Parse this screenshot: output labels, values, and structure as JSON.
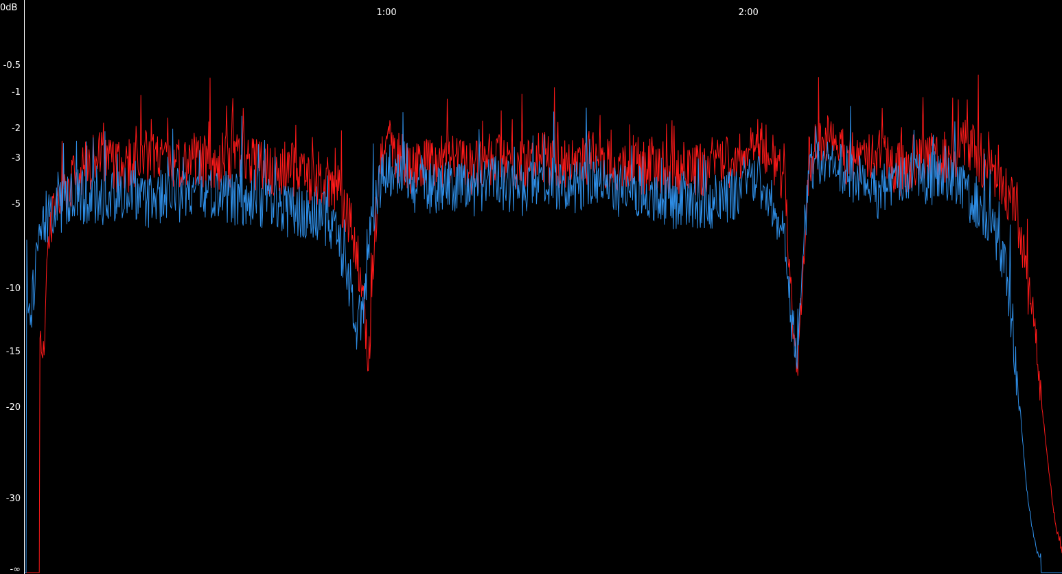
{
  "chart_data": {
    "type": "line",
    "title": "",
    "xlabel": "",
    "ylabel": "",
    "y_unit_label": "0dB",
    "x_tick_labels": [
      {
        "t": 60,
        "label": "1:00"
      },
      {
        "t": 120,
        "label": "2:00"
      }
    ],
    "y_tick_labels": [
      {
        "db": -0.5,
        "label": "-0.5"
      },
      {
        "db": -1,
        "label": "-1"
      },
      {
        "db": -2,
        "label": "-2"
      },
      {
        "db": -3,
        "label": "-3"
      },
      {
        "db": -5,
        "label": "-5"
      },
      {
        "db": -10,
        "label": "-10"
      },
      {
        "db": -15,
        "label": "-15"
      },
      {
        "db": -20,
        "label": "-20"
      },
      {
        "db": -30,
        "label": "-30"
      },
      {
        "db": -999,
        "label": "-∞"
      }
    ],
    "xlim": [
      0,
      172
    ],
    "series": [
      {
        "color": "#ff1a1a",
        "x": [
          0,
          2,
          3,
          4,
          5,
          8,
          12,
          16,
          20,
          24,
          28,
          32,
          36,
          40,
          44,
          48,
          50,
          52,
          54,
          56,
          57,
          58,
          59,
          60,
          62,
          64,
          66,
          68,
          70,
          74,
          78,
          82,
          86,
          90,
          94,
          98,
          102,
          106,
          110,
          114,
          118,
          122,
          124,
          126,
          127,
          128,
          129,
          130,
          132,
          134,
          136,
          138,
          140,
          142,
          144,
          146,
          148,
          150,
          152,
          154,
          156,
          158,
          160,
          162,
          164,
          165,
          166,
          167,
          168,
          169,
          170,
          171,
          172
        ],
        "y": [
          -999,
          -999,
          -15,
          -7,
          -5,
          -4,
          -3,
          -3.5,
          -3,
          -3.5,
          -3,
          -3.5,
          -3,
          -3.5,
          -3.5,
          -4,
          -4,
          -4.5,
          -6,
          -10,
          -17,
          -8,
          -3,
          -2.5,
          -3,
          -3.5,
          -3,
          -3.5,
          -3,
          -3.5,
          -3,
          -3.5,
          -3,
          -3.5,
          -3,
          -3.5,
          -3.5,
          -3.5,
          -3.5,
          -3.5,
          -3,
          -2.5,
          -3,
          -4,
          -9,
          -17,
          -9,
          -3,
          -2.5,
          -2.5,
          -3,
          -3,
          -3,
          -3,
          -3.5,
          -3.5,
          -3,
          -3,
          -3,
          -3,
          -2.5,
          -3,
          -3.5,
          -4,
          -5,
          -6.5,
          -9,
          -12,
          -16,
          -22,
          -28,
          -34,
          -38
        ]
      },
      {
        "color": "#2f8fe8",
        "x": [
          0,
          0.5,
          1,
          2,
          3,
          5,
          8,
          12,
          16,
          20,
          24,
          28,
          32,
          36,
          40,
          44,
          48,
          50,
          52,
          54,
          55,
          56,
          57,
          58,
          59,
          60,
          62,
          64,
          66,
          68,
          70,
          74,
          78,
          82,
          86,
          90,
          94,
          98,
          102,
          106,
          110,
          114,
          118,
          122,
          124,
          126,
          127,
          128,
          129,
          130,
          132,
          134,
          136,
          138,
          140,
          142,
          144,
          146,
          148,
          150,
          152,
          154,
          156,
          158,
          160,
          162,
          163,
          164,
          165,
          166,
          167,
          168,
          169,
          170
        ],
        "y": [
          -999,
          -10,
          -12,
          -8,
          -6,
          -5.5,
          -4.5,
          -5,
          -4.5,
          -5,
          -4.5,
          -5,
          -4.5,
          -5,
          -5,
          -5.5,
          -5.5,
          -6,
          -7,
          -10,
          -13,
          -12,
          -8,
          -5,
          -4,
          -3.5,
          -4,
          -4.5,
          -4,
          -4.5,
          -4,
          -4.5,
          -4,
          -4.5,
          -4,
          -4.5,
          -4,
          -4.5,
          -4.5,
          -5,
          -5,
          -5,
          -4.5,
          -4,
          -5,
          -7,
          -12,
          -15,
          -8,
          -3.5,
          -3,
          -3,
          -3.5,
          -4,
          -4.5,
          -4.5,
          -4,
          -4,
          -4,
          -4,
          -3.5,
          -4,
          -4.5,
          -5,
          -6,
          -8,
          -10,
          -14,
          -20,
          -28,
          -34,
          -38,
          -999,
          -999
        ]
      }
    ]
  }
}
